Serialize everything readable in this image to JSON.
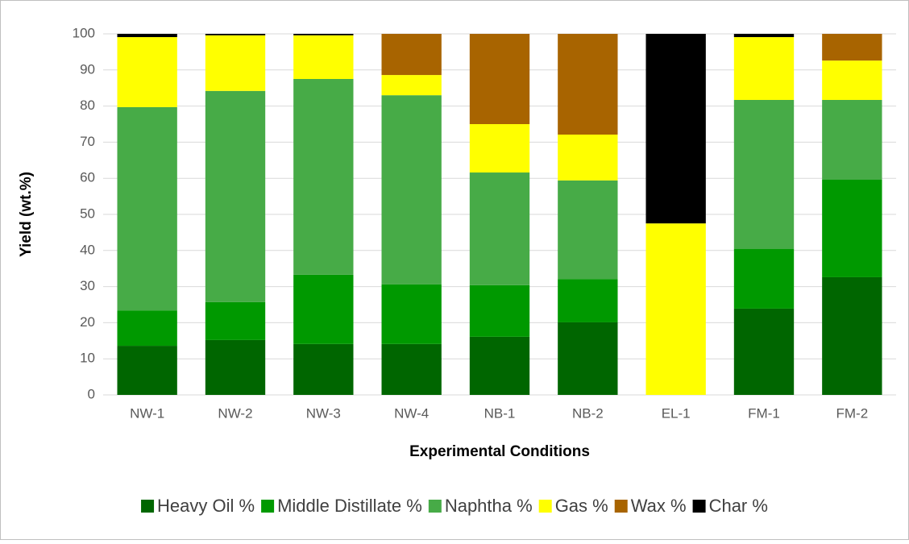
{
  "chart_data": {
    "type": "stacked_bar",
    "x_label": "Experimental Conditions",
    "y_label": "Yield (wt.%)",
    "categories": [
      "NW-1",
      "NW-2",
      "NW-3",
      "NW-4",
      "NB-1",
      "NB-2",
      "EL-1",
      "FM-1",
      "FM-2"
    ],
    "series": [
      {
        "name": "Heavy Oil %",
        "color": "#006600",
        "values": [
          13.6,
          15.2,
          14.1,
          14.1,
          16.1,
          20.1,
          0,
          23.9,
          32.6
        ]
      },
      {
        "name": "Middle Distillate %",
        "color": "#009900",
        "values": [
          9.8,
          10.5,
          19.2,
          16.5,
          14.3,
          12.0,
          0,
          16.5,
          27.0
        ]
      },
      {
        "name": "Naphtha %",
        "color": "#47ab47",
        "values": [
          56.3,
          58.5,
          54.2,
          52.4,
          31.2,
          27.3,
          0,
          41.3,
          22.1
        ]
      },
      {
        "name": "Gas %",
        "color": "#ffff00",
        "values": [
          19.4,
          15.4,
          12.1,
          5.6,
          13.4,
          12.7,
          47.5,
          17.4,
          10.9
        ]
      },
      {
        "name": "Wax %",
        "color": "#a86400",
        "values": [
          0,
          0,
          0,
          11.4,
          25.0,
          27.9,
          0,
          0,
          7.4
        ]
      },
      {
        "name": "Char %",
        "color": "#000000",
        "values": [
          0.9,
          0.4,
          0.4,
          0,
          0,
          0,
          52.5,
          0.9,
          0
        ]
      }
    ],
    "ylim": [
      0,
      100
    ],
    "yticks": [
      0,
      10,
      20,
      30,
      40,
      50,
      60,
      70,
      80,
      90,
      100
    ],
    "grid": true,
    "legend": "bottom"
  }
}
